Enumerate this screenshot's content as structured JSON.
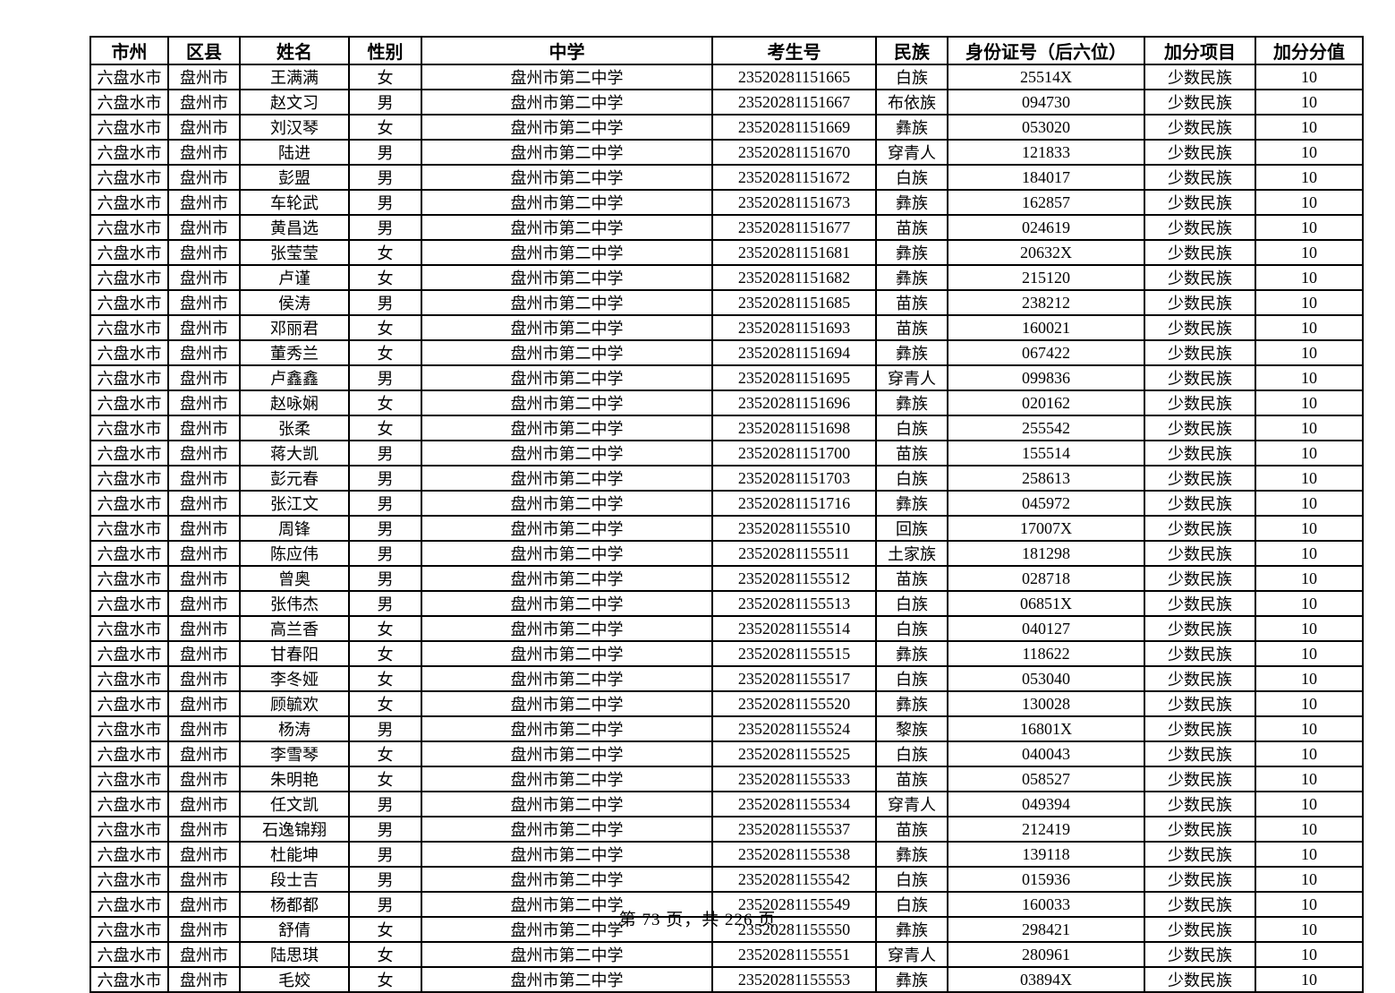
{
  "colors": {
    "background": "#ffffff",
    "border": "#000000",
    "text": "#000000"
  },
  "table": {
    "headers": [
      "市州",
      "区县",
      "姓名",
      "性别",
      "中学",
      "考生号",
      "民族",
      "身份证号（后六位）",
      "加分项目",
      "加分分值"
    ],
    "rows": [
      [
        "六盘水市",
        "盘州市",
        "王满满",
        "女",
        "盘州市第二中学",
        "23520281151665",
        "白族",
        "25514X",
        "少数民族",
        "10"
      ],
      [
        "六盘水市",
        "盘州市",
        "赵文习",
        "男",
        "盘州市第二中学",
        "23520281151667",
        "布依族",
        "094730",
        "少数民族",
        "10"
      ],
      [
        "六盘水市",
        "盘州市",
        "刘汉琴",
        "女",
        "盘州市第二中学",
        "23520281151669",
        "彝族",
        "053020",
        "少数民族",
        "10"
      ],
      [
        "六盘水市",
        "盘州市",
        "陆进",
        "男",
        "盘州市第二中学",
        "23520281151670",
        "穿青人",
        "121833",
        "少数民族",
        "10"
      ],
      [
        "六盘水市",
        "盘州市",
        "彭盟",
        "男",
        "盘州市第二中学",
        "23520281151672",
        "白族",
        "184017",
        "少数民族",
        "10"
      ],
      [
        "六盘水市",
        "盘州市",
        "车轮武",
        "男",
        "盘州市第二中学",
        "23520281151673",
        "彝族",
        "162857",
        "少数民族",
        "10"
      ],
      [
        "六盘水市",
        "盘州市",
        "黄昌选",
        "男",
        "盘州市第二中学",
        "23520281151677",
        "苗族",
        "024619",
        "少数民族",
        "10"
      ],
      [
        "六盘水市",
        "盘州市",
        "张莹莹",
        "女",
        "盘州市第二中学",
        "23520281151681",
        "彝族",
        "20632X",
        "少数民族",
        "10"
      ],
      [
        "六盘水市",
        "盘州市",
        "卢谨",
        "女",
        "盘州市第二中学",
        "23520281151682",
        "彝族",
        "215120",
        "少数民族",
        "10"
      ],
      [
        "六盘水市",
        "盘州市",
        "侯涛",
        "男",
        "盘州市第二中学",
        "23520281151685",
        "苗族",
        "238212",
        "少数民族",
        "10"
      ],
      [
        "六盘水市",
        "盘州市",
        "邓丽君",
        "女",
        "盘州市第二中学",
        "23520281151693",
        "苗族",
        "160021",
        "少数民族",
        "10"
      ],
      [
        "六盘水市",
        "盘州市",
        "董秀兰",
        "女",
        "盘州市第二中学",
        "23520281151694",
        "彝族",
        "067422",
        "少数民族",
        "10"
      ],
      [
        "六盘水市",
        "盘州市",
        "卢鑫鑫",
        "男",
        "盘州市第二中学",
        "23520281151695",
        "穿青人",
        "099836",
        "少数民族",
        "10"
      ],
      [
        "六盘水市",
        "盘州市",
        "赵咏娴",
        "女",
        "盘州市第二中学",
        "23520281151696",
        "彝族",
        "020162",
        "少数民族",
        "10"
      ],
      [
        "六盘水市",
        "盘州市",
        "张柔",
        "女",
        "盘州市第二中学",
        "23520281151698",
        "白族",
        "255542",
        "少数民族",
        "10"
      ],
      [
        "六盘水市",
        "盘州市",
        "蒋大凯",
        "男",
        "盘州市第二中学",
        "23520281151700",
        "苗族",
        "155514",
        "少数民族",
        "10"
      ],
      [
        "六盘水市",
        "盘州市",
        "彭元春",
        "男",
        "盘州市第二中学",
        "23520281151703",
        "白族",
        "258613",
        "少数民族",
        "10"
      ],
      [
        "六盘水市",
        "盘州市",
        "张江文",
        "男",
        "盘州市第二中学",
        "23520281151716",
        "彝族",
        "045972",
        "少数民族",
        "10"
      ],
      [
        "六盘水市",
        "盘州市",
        "周锋",
        "男",
        "盘州市第二中学",
        "23520281155510",
        "回族",
        "17007X",
        "少数民族",
        "10"
      ],
      [
        "六盘水市",
        "盘州市",
        "陈应伟",
        "男",
        "盘州市第二中学",
        "23520281155511",
        "土家族",
        "181298",
        "少数民族",
        "10"
      ],
      [
        "六盘水市",
        "盘州市",
        "曾奥",
        "男",
        "盘州市第二中学",
        "23520281155512",
        "苗族",
        "028718",
        "少数民族",
        "10"
      ],
      [
        "六盘水市",
        "盘州市",
        "张伟杰",
        "男",
        "盘州市第二中学",
        "23520281155513",
        "白族",
        "06851X",
        "少数民族",
        "10"
      ],
      [
        "六盘水市",
        "盘州市",
        "高兰香",
        "女",
        "盘州市第二中学",
        "23520281155514",
        "白族",
        "040127",
        "少数民族",
        "10"
      ],
      [
        "六盘水市",
        "盘州市",
        "甘春阳",
        "女",
        "盘州市第二中学",
        "23520281155515",
        "彝族",
        "118622",
        "少数民族",
        "10"
      ],
      [
        "六盘水市",
        "盘州市",
        "李冬娅",
        "女",
        "盘州市第二中学",
        "23520281155517",
        "白族",
        "053040",
        "少数民族",
        "10"
      ],
      [
        "六盘水市",
        "盘州市",
        "顾毓欢",
        "女",
        "盘州市第二中学",
        "23520281155520",
        "彝族",
        "130028",
        "少数民族",
        "10"
      ],
      [
        "六盘水市",
        "盘州市",
        "杨涛",
        "男",
        "盘州市第二中学",
        "23520281155524",
        "黎族",
        "16801X",
        "少数民族",
        "10"
      ],
      [
        "六盘水市",
        "盘州市",
        "李雪琴",
        "女",
        "盘州市第二中学",
        "23520281155525",
        "白族",
        "040043",
        "少数民族",
        "10"
      ],
      [
        "六盘水市",
        "盘州市",
        "朱明艳",
        "女",
        "盘州市第二中学",
        "23520281155533",
        "苗族",
        "058527",
        "少数民族",
        "10"
      ],
      [
        "六盘水市",
        "盘州市",
        "任文凯",
        "男",
        "盘州市第二中学",
        "23520281155534",
        "穿青人",
        "049394",
        "少数民族",
        "10"
      ],
      [
        "六盘水市",
        "盘州市",
        "石逸锦翔",
        "男",
        "盘州市第二中学",
        "23520281155537",
        "苗族",
        "212419",
        "少数民族",
        "10"
      ],
      [
        "六盘水市",
        "盘州市",
        "杜能坤",
        "男",
        "盘州市第二中学",
        "23520281155538",
        "彝族",
        "139118",
        "少数民族",
        "10"
      ],
      [
        "六盘水市",
        "盘州市",
        "段士吉",
        "男",
        "盘州市第二中学",
        "23520281155542",
        "白族",
        "015936",
        "少数民族",
        "10"
      ],
      [
        "六盘水市",
        "盘州市",
        "杨都都",
        "男",
        "盘州市第二中学",
        "23520281155549",
        "白族",
        "160033",
        "少数民族",
        "10"
      ],
      [
        "六盘水市",
        "盘州市",
        "舒倩",
        "女",
        "盘州市第二中学",
        "23520281155550",
        "彝族",
        "298421",
        "少数民族",
        "10"
      ],
      [
        "六盘水市",
        "盘州市",
        "陆思琪",
        "女",
        "盘州市第二中学",
        "23520281155551",
        "穿青人",
        "280961",
        "少数民族",
        "10"
      ],
      [
        "六盘水市",
        "盘州市",
        "毛姣",
        "女",
        "盘州市第二中学",
        "23520281155553",
        "彝族",
        "03894X",
        "少数民族",
        "10"
      ]
    ]
  },
  "footer": {
    "page_text": "第 73 页，共 226 页"
  }
}
